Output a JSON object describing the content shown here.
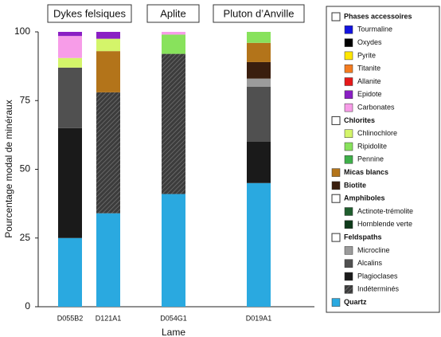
{
  "chart_data": {
    "type": "stacked_bar",
    "ylabel": "Pourcentage modal de minéraux",
    "xlabel": "Lame",
    "ylim": [
      0,
      100
    ],
    "yticks": [
      0,
      25,
      50,
      75,
      100
    ],
    "groups": [
      {
        "name": "Dykes felsiques",
        "categories": [
          "D055B2",
          "D121A1"
        ]
      },
      {
        "name": "Aplite",
        "categories": [
          "D054G1"
        ]
      },
      {
        "name": "Pluton d’Anville",
        "categories": [
          "D019A1"
        ]
      }
    ],
    "legend": [
      {
        "name": "Phases accessoires",
        "series": [
          {
            "name": "Tourmaline",
            "color": "#1414e0",
            "values": [
              0,
              0,
              0,
              0
            ]
          },
          {
            "name": "Oxydes",
            "color": "#000000",
            "values": [
              0,
              0,
              0,
              0
            ]
          },
          {
            "name": "Pyrite",
            "color": "#ffe600",
            "values": [
              0,
              0,
              0,
              0
            ]
          },
          {
            "name": "Titanite",
            "color": "#f47c20",
            "values": [
              0,
              0,
              0,
              0
            ]
          },
          {
            "name": "Allanite",
            "color": "#e61919",
            "values": [
              0,
              0,
              0,
              0
            ]
          },
          {
            "name": "Epidote",
            "color": "#8a1fc4",
            "values": [
              1.5,
              2.5,
              0,
              0
            ]
          },
          {
            "name": "Carbonates",
            "color": "#f79ce8",
            "values": [
              8,
              0,
              1,
              0
            ]
          }
        ]
      },
      {
        "name": "Chlorites",
        "series": [
          {
            "name": "Chlinochlore",
            "color": "#d4f56a",
            "values": [
              3.5,
              4.5,
              0,
              0
            ]
          },
          {
            "name": "Ripidolite",
            "color": "#88e25c",
            "values": [
              0,
              0,
              7,
              4
            ]
          },
          {
            "name": "Pennine",
            "color": "#3fb04a",
            "values": [
              0,
              0,
              0,
              0
            ]
          }
        ]
      },
      {
        "name": "Micas blancs",
        "color": "#b3741a",
        "values": [
          0,
          15,
          0,
          7
        ]
      },
      {
        "name": "Biotite",
        "color": "#3a1e0e",
        "values": [
          0,
          0,
          0,
          6
        ]
      },
      {
        "name": "Amphiboles",
        "series": [
          {
            "name": "Actinote-trémolite",
            "color": "#1f5e2e",
            "values": [
              0,
              0,
              0,
              0
            ]
          },
          {
            "name": "Hornblende verte",
            "color": "#0e3a1a",
            "values": [
              0,
              0,
              0,
              0
            ]
          }
        ]
      },
      {
        "name": "Feldspaths",
        "series": [
          {
            "name": "Microcline",
            "color": "#9b9b9b",
            "values": [
              0,
              0,
              0,
              3
            ]
          },
          {
            "name": "Alcalins",
            "color": "#505050",
            "values": [
              22,
              0,
              0,
              20
            ]
          },
          {
            "name": "Plagioclases",
            "color": "#1a1a1a",
            "values": [
              40,
              0,
              0,
              15
            ]
          },
          {
            "name": "Indéterminés",
            "color": "#3c3c3c",
            "hatch": true,
            "values": [
              0,
              44,
              51,
              0
            ]
          }
        ]
      },
      {
        "name": "Quartz",
        "color": "#2aa9e0",
        "values": [
          25,
          34,
          41,
          45
        ]
      }
    ]
  }
}
